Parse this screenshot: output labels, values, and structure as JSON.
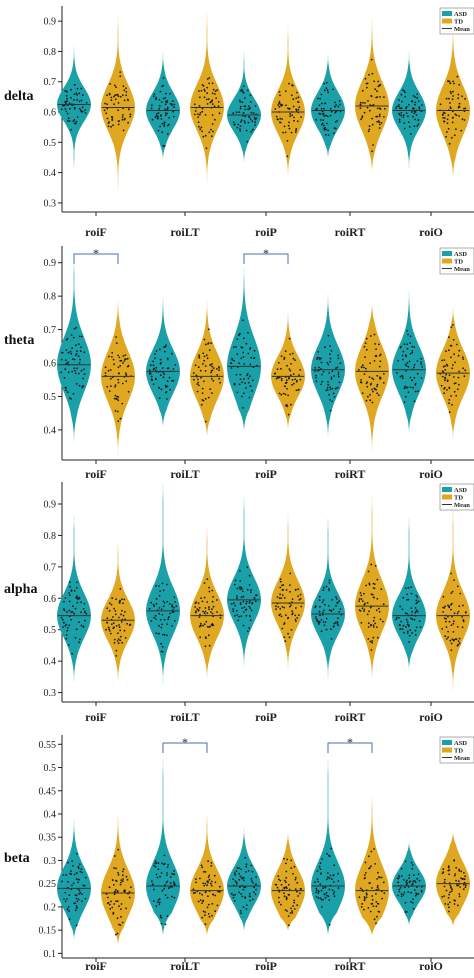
{
  "colors": {
    "ASD": "#1aa0a9",
    "TD": "#e0a820",
    "mean_line": "#333333",
    "sig": "#4a6fb0",
    "axis": "#222222"
  },
  "legend": {
    "entries": [
      "ASD",
      "TD",
      "Mean"
    ]
  },
  "chart_data": [
    {
      "type": "violin",
      "band": "delta",
      "categories": [
        "roiF",
        "roiLT",
        "roiP",
        "roiRT",
        "roiO"
      ],
      "ylim": [
        0.27,
        0.95
      ],
      "yticks": [
        0.3,
        0.4,
        0.5,
        0.6,
        0.7,
        0.8,
        0.9
      ],
      "ytick_labels": [
        "0.3",
        "0.4",
        "0.5",
        "0.6",
        "0.7",
        "0.8",
        "0.9"
      ],
      "series": [
        {
          "name": "ASD",
          "mean": [
            0.625,
            0.605,
            0.59,
            0.605,
            0.605
          ],
          "min": [
            0.41,
            0.44,
            0.43,
            0.45,
            0.41
          ],
          "max": [
            0.82,
            0.8,
            0.8,
            0.79,
            0.8
          ],
          "spread": [
            0.055,
            0.06,
            0.055,
            0.06,
            0.06
          ]
        },
        {
          "name": "TD",
          "mean": [
            0.615,
            0.615,
            0.6,
            0.62,
            0.605
          ],
          "min": [
            0.34,
            0.36,
            0.38,
            0.4,
            0.38
          ],
          "max": [
            0.92,
            0.93,
            0.89,
            0.91,
            0.88
          ],
          "spread": [
            0.075,
            0.075,
            0.07,
            0.08,
            0.08
          ]
        }
      ],
      "significance": []
    },
    {
      "type": "violin",
      "band": "theta",
      "categories": [
        "roiF",
        "roiLT",
        "roiP",
        "roiRT",
        "roiO"
      ],
      "ylim": [
        0.31,
        0.95
      ],
      "yticks": [
        0.4,
        0.5,
        0.6,
        0.7,
        0.8,
        0.9
      ],
      "ytick_labels": [
        "0.4",
        "0.5",
        "0.6",
        "0.7",
        "0.8",
        "0.9"
      ],
      "series": [
        {
          "name": "ASD",
          "mean": [
            0.595,
            0.575,
            0.59,
            0.58,
            0.58
          ],
          "min": [
            0.36,
            0.41,
            0.4,
            0.38,
            0.39
          ],
          "max": [
            0.92,
            0.8,
            0.89,
            0.81,
            0.82
          ],
          "spread": [
            0.08,
            0.065,
            0.085,
            0.07,
            0.07
          ]
        },
        {
          "name": "TD",
          "mean": [
            0.56,
            0.56,
            0.56,
            0.575,
            0.57
          ],
          "min": [
            0.32,
            0.38,
            0.4,
            0.33,
            0.37
          ],
          "max": [
            0.79,
            0.79,
            0.76,
            0.78,
            0.77
          ],
          "spread": [
            0.075,
            0.07,
            0.06,
            0.075,
            0.07
          ]
        }
      ],
      "significance": [
        {
          "category": "roiF",
          "label": "*"
        },
        {
          "category": "roiP",
          "label": "*"
        }
      ]
    },
    {
      "type": "violin",
      "band": "alpha",
      "categories": [
        "roiF",
        "roiLT",
        "roiP",
        "roiRT",
        "roiO"
      ],
      "ylim": [
        0.27,
        0.97
      ],
      "yticks": [
        0.3,
        0.4,
        0.5,
        0.6,
        0.7,
        0.8,
        0.9
      ],
      "ytick_labels": [
        "0.3",
        "0.4",
        "0.5",
        "0.6",
        "0.7",
        "0.8",
        "0.9"
      ],
      "series": [
        {
          "name": "ASD",
          "mean": [
            0.545,
            0.56,
            0.595,
            0.55,
            0.545
          ],
          "min": [
            0.33,
            0.32,
            0.38,
            0.34,
            0.37
          ],
          "max": [
            0.87,
            0.97,
            0.93,
            0.86,
            0.86
          ],
          "spread": [
            0.07,
            0.075,
            0.07,
            0.065,
            0.065
          ]
        },
        {
          "name": "TD",
          "mean": [
            0.53,
            0.545,
            0.585,
            0.575,
            0.545
          ],
          "min": [
            0.33,
            0.34,
            0.37,
            0.34,
            0.3
          ],
          "max": [
            0.78,
            0.83,
            0.87,
            0.93,
            0.89
          ],
          "spread": [
            0.065,
            0.07,
            0.07,
            0.08,
            0.075
          ]
        }
      ],
      "significance": []
    },
    {
      "type": "violin",
      "band": "beta",
      "categories": [
        "roiF",
        "roiLT",
        "roiP",
        "roiRT",
        "roiO"
      ],
      "ylim": [
        0.09,
        0.57
      ],
      "yticks": [
        0.1,
        0.15,
        0.2,
        0.25,
        0.3,
        0.35,
        0.4,
        0.45,
        0.5,
        0.55
      ],
      "ytick_labels": [
        "0.1",
        "0.15",
        "0.2",
        "0.25",
        "0.3",
        "0.35",
        "0.4",
        "0.45",
        "0.5",
        "0.55"
      ],
      "series": [
        {
          "name": "ASD",
          "mean": [
            0.24,
            0.245,
            0.245,
            0.245,
            0.245
          ],
          "min": [
            0.13,
            0.14,
            0.15,
            0.14,
            0.16
          ],
          "max": [
            0.39,
            0.52,
            0.37,
            0.52,
            0.34
          ],
          "spread": [
            0.045,
            0.05,
            0.04,
            0.05,
            0.035
          ]
        },
        {
          "name": "TD",
          "mean": [
            0.23,
            0.235,
            0.235,
            0.235,
            0.25
          ],
          "min": [
            0.12,
            0.14,
            0.15,
            0.14,
            0.16
          ],
          "max": [
            0.4,
            0.4,
            0.36,
            0.44,
            0.36
          ],
          "spread": [
            0.05,
            0.045,
            0.045,
            0.055,
            0.045
          ]
        }
      ],
      "significance": [
        {
          "category": "roiLT",
          "label": "*"
        },
        {
          "category": "roiRT",
          "label": "*"
        }
      ]
    }
  ]
}
